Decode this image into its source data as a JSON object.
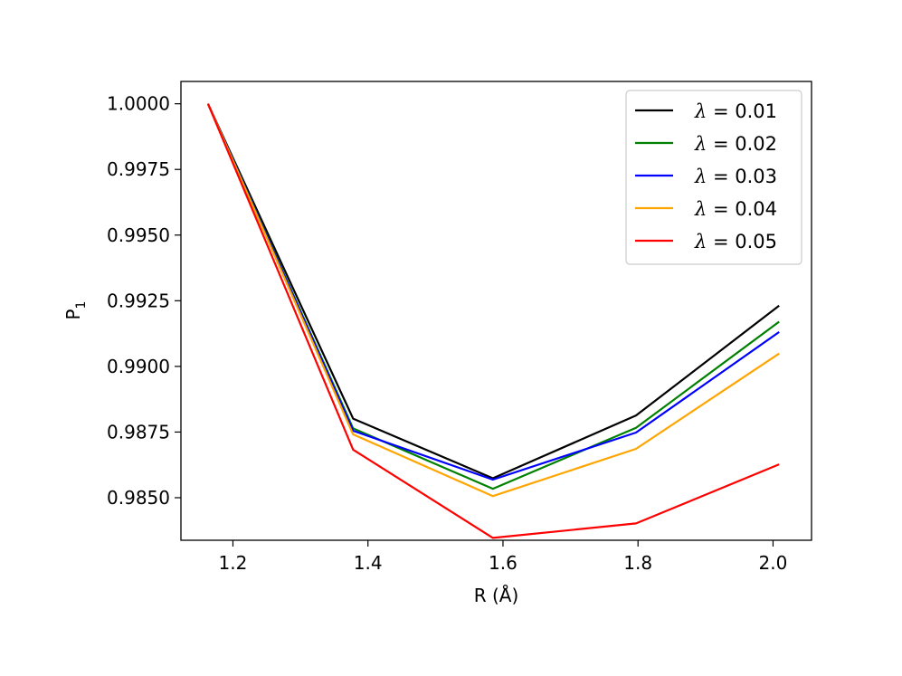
{
  "chart_data": {
    "type": "line",
    "title": "",
    "xlabel": "R (Å)",
    "ylabel_main": "P",
    "ylabel_sub": "1",
    "x": [
      1.163,
      1.378,
      1.585,
      1.797,
      2.009
    ],
    "xlim": [
      1.123,
      2.057
    ],
    "ylim": [
      0.98338,
      1.00085
    ],
    "xticks": [
      1.2,
      1.4,
      1.6,
      1.8,
      2.0
    ],
    "xtick_labels": [
      "1.2",
      "1.4",
      "1.6",
      "1.8",
      "2.0"
    ],
    "yticks": [
      0.985,
      0.9875,
      0.99,
      0.9925,
      0.995,
      0.9975,
      1.0
    ],
    "ytick_labels": [
      "0.9850",
      "0.9875",
      "0.9900",
      "0.9925",
      "0.9950",
      "0.9975",
      "1.0000"
    ],
    "grid": false,
    "legend_position": "top-right",
    "series": [
      {
        "name": "λ = 0.01",
        "symbol": "λ",
        "rest": " = 0.01",
        "color": "#000000",
        "values": [
          1.0,
          0.98801,
          0.98574,
          0.98813,
          0.99231
        ]
      },
      {
        "name": "λ = 0.02",
        "symbol": "λ",
        "rest": " = 0.02",
        "color": "#008000",
        "values": [
          1.0,
          0.98764,
          0.98534,
          0.98766,
          0.9917
        ]
      },
      {
        "name": "λ = 0.03",
        "symbol": "λ",
        "rest": " = 0.03",
        "color": "#0000ff",
        "values": [
          1.0,
          0.98755,
          0.98569,
          0.98748,
          0.99131
        ]
      },
      {
        "name": "λ = 0.04",
        "symbol": "λ",
        "rest": " = 0.04",
        "color": "#ffa500",
        "values": [
          1.0,
          0.98741,
          0.98506,
          0.98686,
          0.99049
        ]
      },
      {
        "name": "λ = 0.05",
        "symbol": "λ",
        "rest": " = 0.05",
        "color": "#ff0000",
        "values": [
          1.0,
          0.98683,
          0.98347,
          0.98402,
          0.98627
        ]
      }
    ]
  }
}
